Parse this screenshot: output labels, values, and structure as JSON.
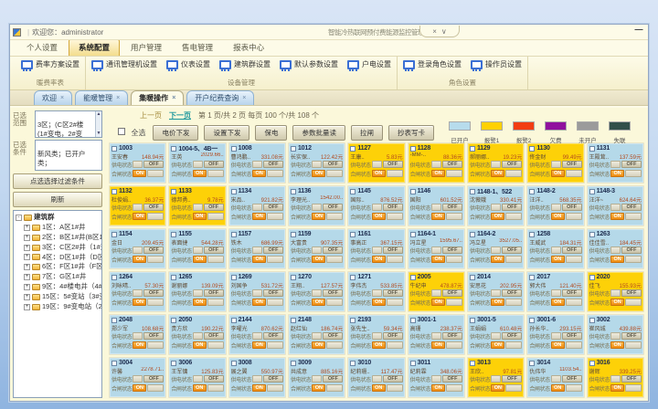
{
  "window": {
    "welcome": "欢迎您：administrator",
    "title": "智能冷热联网预付费能源监控管理系统",
    "minimize": "—"
  },
  "menu": {
    "active": 1,
    "items": [
      "个人设置",
      "系统配置",
      "用户管理",
      "售电管理",
      "报表中心"
    ]
  },
  "ribbon": {
    "groups": [
      {
        "label": "暖费率表",
        "buttons": [
          "费率方案设置"
        ]
      },
      {
        "label": "设备管理",
        "buttons": [
          "通讯管理机设置",
          "仪表设置",
          "建筑群设置",
          "默认参数设置",
          "户电设置"
        ]
      },
      {
        "label": "角色设置",
        "buttons": [
          "登录角色设置",
          "操作员设置"
        ]
      }
    ]
  },
  "doc_tabs": {
    "active": 2,
    "items": [
      "欢迎",
      "能暖管理",
      "集暖操作",
      "开户纪费查询"
    ]
  },
  "sidebar": {
    "range_label": "已选范围",
    "range_value": "3区；(C区2#楼\n(1#变电，2#变\n区，C区…",
    "cond_label": "已选条件",
    "cond_value": "新风类；已开户\n类；",
    "filter_button": "点选选择过滤条件",
    "refresh_button": "刷新",
    "tree": {
      "root": "建筑群",
      "items": [
        "1区：A区1#井",
        "2区：B区1#井(B区1#",
        "3区：C区2#井（1#变",
        "4区：D区1#井（D区1",
        "6区：F区1#井（F区1",
        "7区：G区1#井",
        "9区：4#楼电井（4#楼",
        "15区：5#变站（3#变",
        "19区：9#变电站（2#"
      ]
    }
  },
  "pagination": {
    "prev": "上一页",
    "next": "下一页",
    "info": "第  1  页/共  2  页    每页  100  个/共  108  个"
  },
  "toolbar": {
    "select_all": "全选",
    "buttons": [
      "电价下发",
      "设置下发",
      "保电",
      "参数批量读",
      "拉闸",
      "抄表写卡"
    ]
  },
  "legend": [
    {
      "label": "已开户",
      "color": "#b7dcec"
    },
    {
      "label": "报警1",
      "color": "#ffd100"
    },
    {
      "label": "报警2",
      "color": "#f23d12"
    },
    {
      "label": "欠费",
      "color": "#90109e"
    },
    {
      "label": "未开户",
      "color": "#9b9b9b"
    },
    {
      "label": "失联",
      "color": "#31504a"
    }
  ],
  "card_labels": {
    "supply": "供电状态",
    "switch": "合闸状态",
    "on": "ON",
    "off": "OFF"
  },
  "state_colors": {
    "blue": "#b5d9e9",
    "yellow": "#fdd108"
  },
  "cards": [
    {
      "no": "1003",
      "name": "王安春",
      "bal": "148.94元",
      "state": "blue"
    },
    {
      "no": "1004-5、4B一",
      "name": "王英",
      "bal": "2029.66..",
      "state": "blue"
    },
    {
      "no": "1008",
      "name": "曹鸿鹏..",
      "bal": "331.08元",
      "state": "blue"
    },
    {
      "no": "1012",
      "name": "长实保..",
      "bal": "122.42元",
      "state": "blue"
    },
    {
      "no": "1127",
      "name": "王康..",
      "bal": "5.83元",
      "state": "yellow"
    },
    {
      "no": "1128",
      "name": "-MM-..",
      "bal": "88.36元",
      "state": "yellow"
    },
    {
      "no": "1129",
      "name": "郝丽娜..",
      "bal": "19.23元",
      "state": "yellow"
    },
    {
      "no": "1130",
      "name": "佟金财",
      "bal": "99.49元",
      "state": "yellow"
    },
    {
      "no": "1131",
      "name": "王殿茸..",
      "bal": "137.59元",
      "state": "blue"
    },
    {
      "no": "1132",
      "name": "杜俊娟..",
      "bal": "36.37元",
      "state": "yellow"
    },
    {
      "no": "1133",
      "name": "德邦勇..",
      "bal": "9.78元",
      "state": "yellow"
    },
    {
      "no": "1134",
      "name": "宋品..",
      "bal": "921.82元",
      "state": "blue"
    },
    {
      "no": "1136",
      "name": "李理光..",
      "bal": "1542.00..",
      "state": "blue"
    },
    {
      "no": "1145",
      "name": "国际..",
      "bal": "876.52元",
      "state": "blue"
    },
    {
      "no": "1146",
      "name": "国阳",
      "bal": "601.52元",
      "state": "blue"
    },
    {
      "no": "1148-1、522",
      "name": "沈薇娥",
      "bal": "330.41元",
      "state": "blue"
    },
    {
      "no": "1148-2",
      "name": "汪洋..",
      "bal": "568.35元",
      "state": "blue"
    },
    {
      "no": "1148-3",
      "name": "汪洋~",
      "bal": "624.64元",
      "state": "blue"
    },
    {
      "no": "1154",
      "name": "金日",
      "bal": "209.45元",
      "state": "blue"
    },
    {
      "no": "1155",
      "name": "表面捷",
      "bal": "544.28元",
      "state": "blue"
    },
    {
      "no": "1157",
      "name": "铁木",
      "bal": "686.99元",
      "state": "blue"
    },
    {
      "no": "1159",
      "name": "大富贵",
      "bal": "907.35元",
      "state": "blue"
    },
    {
      "no": "1161",
      "name": "事高正",
      "bal": "367.15元",
      "state": "blue"
    },
    {
      "no": "1164-1",
      "name": "冯立星",
      "bal": "1595.67..",
      "state": "blue"
    },
    {
      "no": "1164-2",
      "name": "冯立星",
      "bal": "3527.05..",
      "state": "blue"
    },
    {
      "no": "1258",
      "name": "王威武",
      "bal": "184.31元",
      "state": "blue"
    },
    {
      "no": "1263",
      "name": "佳佳雪..",
      "bal": "184.45元",
      "state": "blue"
    },
    {
      "no": "1264",
      "name": "刘咏晴..",
      "bal": "57.30元",
      "state": "blue"
    },
    {
      "no": "1265",
      "name": "谢丽娜",
      "bal": "139.09元",
      "state": "blue"
    },
    {
      "no": "1269",
      "name": "刘国争",
      "bal": "531.72元",
      "state": "blue"
    },
    {
      "no": "1270",
      "name": "王翔..",
      "bal": "127.57元",
      "state": "blue"
    },
    {
      "no": "1271",
      "name": "李伟杰",
      "bal": "533.85元",
      "state": "blue"
    },
    {
      "no": "2005",
      "name": "牛纪申",
      "bal": "478.87元",
      "state": "yellow"
    },
    {
      "no": "2014",
      "name": "安思花",
      "bal": "202.95元",
      "state": "blue"
    },
    {
      "no": "2017",
      "name": "郭大伟",
      "bal": "121.40元",
      "state": "blue"
    },
    {
      "no": "2020",
      "name": "佳飞",
      "bal": "155.93元",
      "state": "yellow"
    },
    {
      "no": "2048",
      "name": "郑少军",
      "bal": "108.68元",
      "state": "blue"
    },
    {
      "no": "2050",
      "name": "贵方欣",
      "bal": "190.22元",
      "state": "blue"
    },
    {
      "no": "2144",
      "name": "李曜光",
      "bal": "870.62元",
      "state": "blue"
    },
    {
      "no": "2148",
      "name": "赵红仙",
      "bal": "186.74元",
      "state": "blue"
    },
    {
      "no": "2193",
      "name": "张先生..",
      "bal": "59.34元",
      "state": "blue"
    },
    {
      "no": "3001-1",
      "name": "高珊",
      "bal": "238.37元",
      "state": "blue"
    },
    {
      "no": "3001-5",
      "name": "王娟娟",
      "bal": "610.48元",
      "state": "blue"
    },
    {
      "no": "3001-6",
      "name": "孙长华..",
      "bal": "293.15元",
      "state": "blue"
    },
    {
      "no": "3002",
      "name": "崔风城",
      "bal": "439.88元",
      "state": "blue"
    },
    {
      "no": "3004",
      "name": "许馨",
      "bal": "2278.71..",
      "state": "blue"
    },
    {
      "no": "3006",
      "name": "王军镛",
      "bal": "125.83元",
      "state": "blue"
    },
    {
      "no": "3008",
      "name": "展之翼",
      "bal": "550.97元",
      "state": "blue"
    },
    {
      "no": "3009",
      "name": "共成意",
      "bal": "885.16元",
      "state": "blue"
    },
    {
      "no": "3010",
      "name": "纪莉珊..",
      "bal": "117.47元",
      "state": "blue"
    },
    {
      "no": "3011",
      "name": "纪莉霖",
      "bal": "348.06元",
      "state": "blue"
    },
    {
      "no": "3013",
      "name": "王欣..",
      "bal": "97.81元",
      "state": "yellow"
    },
    {
      "no": "3014",
      "name": "仇伟华",
      "bal": "1103.54..",
      "state": "blue"
    },
    {
      "no": "3016",
      "name": "谢辉",
      "bal": "339.25元",
      "state": "yellow"
    }
  ]
}
